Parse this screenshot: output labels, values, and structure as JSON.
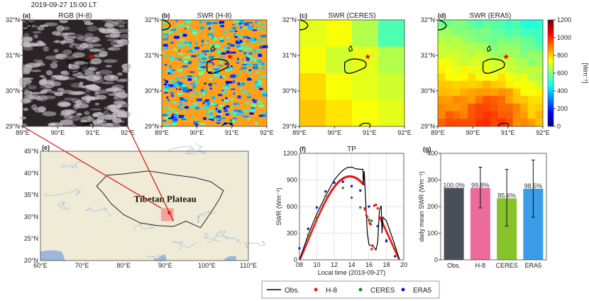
{
  "header": {
    "datetime": "2019-09-27 15:00 LT"
  },
  "panels": {
    "a": {
      "tag": "(a)",
      "title": "RGB (H-8)"
    },
    "b": {
      "tag": "(b)",
      "title": "SWR (H-8)"
    },
    "c": {
      "tag": "(c)",
      "title": "SWR (CERES)"
    },
    "d": {
      "tag": "(d)",
      "title": "SWR (ERA5)"
    },
    "e": {
      "tag": "(e)",
      "label": "Tibetan Plateau"
    },
    "f": {
      "tag": "(f)",
      "title": "TP"
    },
    "g": {
      "tag": "(g)"
    }
  },
  "map_ticks": {
    "lat": [
      "29°N",
      "30°N",
      "31°N",
      "32°N"
    ],
    "lon": [
      "89°E",
      "90°E",
      "91°E",
      "92°E"
    ]
  },
  "colorbar": {
    "ticks": [
      "0",
      "200",
      "400",
      "600",
      "800",
      "1000",
      "1200"
    ],
    "label": "[Wm⁻²]",
    "range": [
      0,
      1200
    ]
  },
  "chart_data": [
    {
      "type": "map",
      "panel": "e",
      "lon_ticks": [
        "60°E",
        "70°E",
        "80°E",
        "90°E",
        "100°E",
        "110°E"
      ],
      "lat_ticks": [
        "20°N",
        "25°N",
        "30°N",
        "35°N",
        "40°N",
        "45°N"
      ],
      "xlim": [
        60,
        110
      ],
      "ylim": [
        20,
        45
      ],
      "region_box": {
        "lon": [
          89,
          92
        ],
        "lat": [
          29,
          32
        ]
      },
      "site": {
        "lon": 91,
        "lat": 31
      }
    },
    {
      "type": "line",
      "panel": "f",
      "title": "TP",
      "xlabel": "Local time (2019-09-27)",
      "ylabel": "SWR (Wm⁻²)",
      "xlim": [
        8,
        20
      ],
      "ylim": [
        0,
        1200
      ],
      "xticks": [
        "08",
        "10",
        "12",
        "14",
        "16",
        "18",
        "20"
      ],
      "yticks": [
        "0",
        "300",
        "600",
        "900",
        "1200"
      ],
      "series": [
        {
          "name": "Obs.",
          "color": "#000000",
          "kind": "line",
          "x": [
            8,
            9,
            10,
            11,
            12,
            12.5,
            13,
            13.5,
            14,
            14.5,
            15,
            15.3,
            15.35,
            15.45,
            15.6,
            15.8,
            16,
            16.5,
            16.8,
            17,
            17.2,
            17.4,
            17.5,
            17.6,
            18,
            18.5,
            19,
            19.5
          ],
          "y": [
            0,
            280,
            520,
            720,
            900,
            960,
            1010,
            1040,
            1045,
            1025,
            1020,
            1020,
            850,
            1000,
            700,
            300,
            170,
            150,
            110,
            200,
            560,
            610,
            300,
            480,
            440,
            300,
            160,
            0
          ]
        },
        {
          "name": "H-8",
          "color": "#e41a1c",
          "kind": "dots",
          "x": [
            15.5,
            15.6,
            15.7,
            15.8,
            16.0,
            16.1,
            16.2,
            16.3,
            16.4,
            16.6,
            16.8,
            17.0,
            17.2
          ],
          "y": [
            580,
            560,
            500,
            480,
            440,
            410,
            400,
            120,
            160,
            610,
            620,
            580,
            480
          ]
        },
        {
          "name": "CERES",
          "color": "#228b22",
          "kind": "dots",
          "x": [
            9,
            10,
            11,
            12,
            13,
            14,
            15,
            16,
            16.3,
            17,
            18
          ],
          "y": [
            280,
            470,
            720,
            870,
            810,
            700,
            590,
            450,
            440,
            380,
            220
          ]
        },
        {
          "name": "ERA5",
          "color": "#1515c8",
          "kind": "dots",
          "x": [
            8,
            9,
            10,
            11,
            12,
            13,
            14,
            15,
            16,
            17,
            18,
            19
          ],
          "y": [
            130,
            350,
            590,
            770,
            870,
            880,
            830,
            780,
            600,
            380,
            210,
            40
          ]
        }
      ],
      "legend": "bottom-outside"
    },
    {
      "type": "bar",
      "panel": "g",
      "ylabel": "daily mean SWR (Wm⁻²)",
      "ylim": [
        0,
        400
      ],
      "yticks": [
        "0",
        "100",
        "200",
        "300",
        "400"
      ],
      "categories": [
        "Obs.",
        "H-8",
        "CERES",
        "ERA5"
      ],
      "values": [
        270,
        270,
        231,
        267
      ],
      "err_low": [
        270,
        195,
        127,
        160
      ],
      "err_high": [
        270,
        348,
        340,
        375
      ],
      "labels": [
        "100.0%",
        "99.8%",
        "85.6%",
        "98.5%"
      ],
      "colors": [
        "#4a4f57",
        "#ec6a9c",
        "#86c429",
        "#3b9de8"
      ]
    }
  ]
}
